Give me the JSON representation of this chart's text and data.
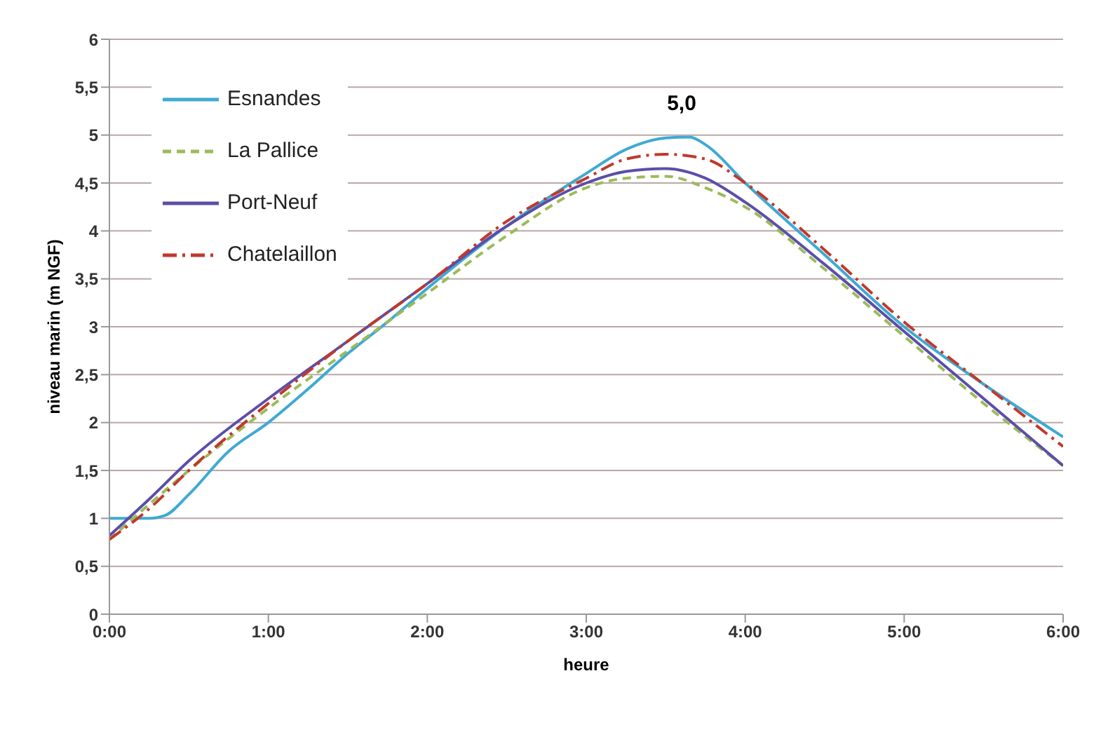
{
  "chart_data": {
    "type": "line",
    "xlabel": "heure",
    "ylabel": "niveau marin (m NGF)",
    "xlim": [
      0,
      6
    ],
    "xticks": [
      {
        "value": 0,
        "label": "0:00"
      },
      {
        "value": 1,
        "label": "1:00"
      },
      {
        "value": 2,
        "label": "2:00"
      },
      {
        "value": 3,
        "label": "3:00"
      },
      {
        "value": 4,
        "label": "4:00"
      },
      {
        "value": 5,
        "label": "5:00"
      },
      {
        "value": 6,
        "label": "6:00"
      }
    ],
    "ylim": [
      0,
      6
    ],
    "yticks": [
      0,
      {
        "value": 0.5,
        "label": "0,5"
      },
      1,
      {
        "value": 1.5,
        "label": "1,5"
      },
      2,
      {
        "value": 2.5,
        "label": "2,5"
      },
      3,
      {
        "value": 3.5,
        "label": "3,5"
      },
      4,
      {
        "value": 4.5,
        "label": "4,5"
      },
      5,
      {
        "value": 5.5,
        "label": "5,5"
      },
      6
    ],
    "grid": "y",
    "legend": "top left",
    "marker": "none",
    "annotations": [
      {
        "text": "5,0",
        "x": 3.6,
        "y": 5.0
      }
    ],
    "series": [
      {
        "name": "Esnandes",
        "color": "#3fa9d4",
        "line_style": "solid",
        "x": [
          0,
          0.25,
          0.35,
          0.5,
          0.75,
          1,
          1.25,
          1.5,
          1.75,
          2,
          2.5,
          3,
          3.25,
          3.5,
          3.65,
          3.75,
          4,
          4.5,
          5,
          5.5,
          6
        ],
        "values": [
          1.0,
          1.0,
          1.03,
          1.25,
          1.7,
          2.0,
          2.35,
          2.72,
          3.05,
          3.4,
          4.05,
          4.6,
          4.85,
          4.97,
          4.98,
          4.9,
          4.5,
          3.75,
          3.0,
          2.4,
          1.85
        ]
      },
      {
        "name": "La Pallice",
        "color": "#9bbb59",
        "line_style": "dashed",
        "x": [
          0,
          0.5,
          1,
          1.5,
          2,
          2.5,
          3,
          3.25,
          3.5,
          3.75,
          4,
          4.5,
          5,
          5.5,
          6
        ],
        "values": [
          0.78,
          1.5,
          2.15,
          2.75,
          3.35,
          3.95,
          4.45,
          4.55,
          4.57,
          4.45,
          4.25,
          3.6,
          2.9,
          2.2,
          1.55
        ]
      },
      {
        "name": "Port-Neuf",
        "color": "#5b4ea8",
        "line_style": "solid",
        "x": [
          0,
          0.25,
          0.5,
          1,
          1.5,
          2,
          2.5,
          3,
          3.25,
          3.5,
          3.75,
          4,
          4.5,
          5,
          5.5,
          6
        ],
        "values": [
          0.82,
          1.2,
          1.6,
          2.25,
          2.85,
          3.45,
          4.05,
          4.5,
          4.62,
          4.65,
          4.55,
          4.3,
          3.65,
          2.95,
          2.25,
          1.55
        ]
      },
      {
        "name": "Chatelaillon",
        "color": "#c0392b",
        "line_style": "dashdot",
        "x": [
          0,
          0.25,
          0.5,
          1,
          1.5,
          2,
          2.5,
          3,
          3.25,
          3.5,
          3.75,
          4,
          4.5,
          5,
          5.5,
          6
        ],
        "values": [
          0.78,
          1.1,
          1.5,
          2.2,
          2.85,
          3.45,
          4.1,
          4.55,
          4.75,
          4.8,
          4.75,
          4.5,
          3.8,
          3.05,
          2.4,
          1.75
        ]
      }
    ]
  }
}
